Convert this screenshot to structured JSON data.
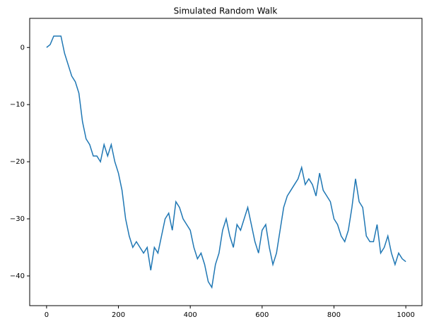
{
  "chart_data": {
    "type": "line",
    "title": "Simulated Random Walk",
    "color": "#1f77b4",
    "x": [
      0,
      10,
      20,
      30,
      40,
      50,
      60,
      70,
      80,
      90,
      100,
      110,
      120,
      130,
      140,
      150,
      160,
      170,
      180,
      190,
      200,
      210,
      220,
      230,
      240,
      250,
      260,
      270,
      280,
      290,
      300,
      310,
      320,
      330,
      340,
      350,
      360,
      370,
      380,
      390,
      400,
      410,
      420,
      430,
      440,
      450,
      460,
      470,
      480,
      490,
      500,
      510,
      520,
      530,
      540,
      550,
      560,
      570,
      580,
      590,
      600,
      610,
      620,
      630,
      640,
      650,
      660,
      670,
      680,
      690,
      700,
      710,
      720,
      730,
      740,
      750,
      760,
      770,
      780,
      790,
      800,
      810,
      820,
      830,
      840,
      850,
      860,
      870,
      880,
      890,
      900,
      910,
      920,
      930,
      940,
      950,
      960,
      970,
      980,
      990,
      1000
    ],
    "values": [
      0,
      0.5,
      2,
      2,
      2,
      -1,
      -3,
      -5,
      -6,
      -8,
      -13,
      -16,
      -17,
      -19,
      -19,
      -20,
      -17,
      -19,
      -17,
      -20,
      -22,
      -25,
      -30,
      -33,
      -35,
      -34,
      -35,
      -36,
      -35,
      -39,
      -35,
      -36,
      -33,
      -30,
      -29,
      -32,
      -27,
      -28,
      -30,
      -31,
      -32,
      -35,
      -37,
      -36,
      -38,
      -41,
      -42,
      -38,
      -36,
      -32,
      -30,
      -33,
      -35,
      -31,
      -32,
      -30,
      -28,
      -31,
      -34,
      -36,
      -32,
      -31,
      -35,
      -38,
      -36,
      -32,
      -28,
      -26,
      -25,
      -24,
      -23,
      -21,
      -24,
      -23,
      -24,
      -26,
      -22,
      -25,
      -26,
      -27,
      -30,
      -31,
      -33,
      -34,
      -32,
      -28,
      -23,
      -27,
      -28,
      -33,
      -34,
      -34,
      -31,
      -36,
      -35,
      -33,
      -36,
      -38,
      -36,
      -37,
      -37.5
    ],
    "xlim": [
      -47,
      1045
    ],
    "ylim": [
      -45.2,
      5.1
    ],
    "xticks": [
      0,
      200,
      400,
      600,
      800,
      1000
    ],
    "yticks": [
      {
        "value": -40,
        "label": "−40"
      },
      {
        "value": -30,
        "label": "−30"
      },
      {
        "value": -20,
        "label": "−20"
      },
      {
        "value": -10,
        "label": "−10"
      },
      0
    ]
  }
}
